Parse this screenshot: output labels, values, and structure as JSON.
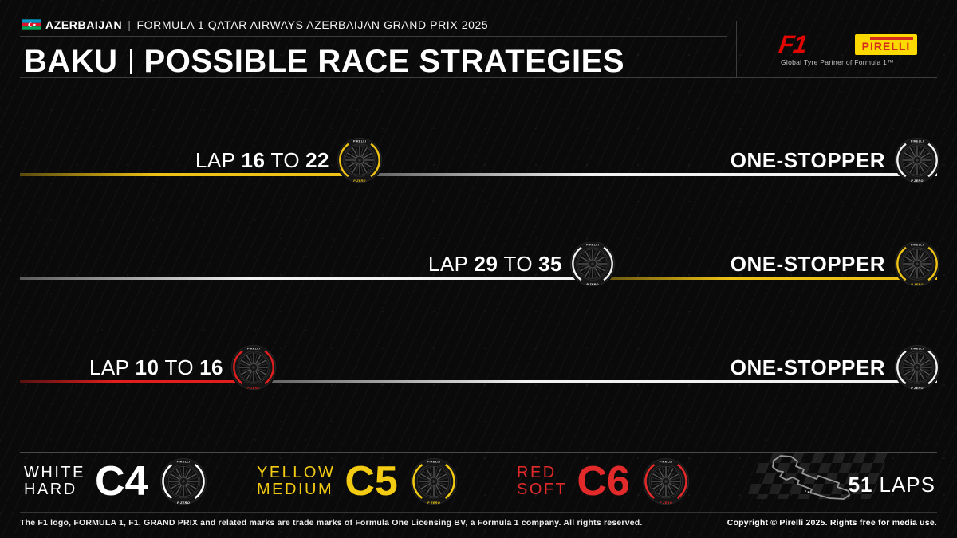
{
  "header": {
    "event_line": {
      "country": "AZERBAIJAN",
      "separator": "|",
      "event": "FORMULA 1 QATAR AIRWAYS AZERBAIJAN GRAND PRIX 2025"
    },
    "title": {
      "left": "BAKU",
      "right": "POSSIBLE RACE STRATEGIES"
    },
    "logos": {
      "f1": "F1",
      "pirelli": "PIRELLI",
      "tagline": "Global Tyre Partner of Formula 1™"
    }
  },
  "strategies": [
    {
      "lap_word": "LAP",
      "from": "16",
      "to_word": "TO",
      "to": "22",
      "stopper_label": "ONE-STOPPER",
      "start_compound": "medium",
      "end_compound": "hard",
      "start_color": "#eec315",
      "end_color": "#f2f2f2"
    },
    {
      "lap_word": "LAP",
      "from": "29",
      "to_word": "TO",
      "to": "35",
      "stopper_label": "ONE-STOPPER",
      "start_compound": "hard",
      "end_compound": "medium",
      "start_color": "#f2f2f2",
      "end_color": "#eec315"
    },
    {
      "lap_word": "LAP",
      "from": "10",
      "to_word": "TO",
      "to": "16",
      "stopper_label": "ONE-STOPPER",
      "start_compound": "soft",
      "end_compound": "hard",
      "start_color": "#e11e1e",
      "end_color": "#f2f2f2"
    }
  ],
  "legend": {
    "compounds": [
      {
        "line1": "WHITE",
        "line2": "HARD",
        "code": "C4",
        "color": "#ffffff"
      },
      {
        "line1": "YELLOW",
        "line2": "MEDIUM",
        "code": "C5",
        "color": "#f3cb12"
      },
      {
        "line1": "RED",
        "line2": "SOFT",
        "code": "C6",
        "color": "#e32a2b"
      }
    ],
    "laps": {
      "number": "51",
      "word": "LAPS"
    }
  },
  "footer": {
    "left": "The F1 logo, FORMULA 1, F1, GRAND PRIX and related marks are trade marks of Formula One Licensing BV, a Formula 1 company. All rights reserved.",
    "right": "Copyright © Pirelli 2025. Rights free for media use."
  },
  "colors": {
    "f1_red": "#e10600",
    "pirelli_yellow": "#fcd900",
    "hard_white": "#f2f2f2",
    "medium_yellow": "#eec315",
    "soft_red": "#e11e1e"
  }
}
